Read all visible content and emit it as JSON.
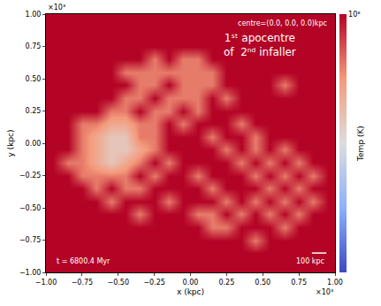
{
  "chart_data": {
    "type": "heatmap",
    "xlabel": "x (kpc)",
    "ylabel": "y (kpc)",
    "axis_multiplier": "×10³",
    "xlim": [
      -1000,
      1000
    ],
    "ylim": [
      -1000,
      1000
    ],
    "xticks": [
      {
        "value": -1000,
        "label": "−1.00"
      },
      {
        "value": -750,
        "label": "−0.75"
      },
      {
        "value": -500,
        "label": "−0.50"
      },
      {
        "value": -250,
        "label": "−0.25"
      },
      {
        "value": 0,
        "label": "0.00"
      },
      {
        "value": 250,
        "label": "0.25"
      },
      {
        "value": 500,
        "label": "0.50"
      },
      {
        "value": 750,
        "label": "0.75"
      },
      {
        "value": 1000,
        "label": "1.00"
      }
    ],
    "yticks": [
      {
        "value": -1000,
        "label": "−1.00"
      },
      {
        "value": -750,
        "label": "−0.75"
      },
      {
        "value": -500,
        "label": "−0.50"
      },
      {
        "value": -250,
        "label": "−0.25"
      },
      {
        "value": 0,
        "label": "0.00"
      },
      {
        "value": 250,
        "label": "0.25"
      },
      {
        "value": 500,
        "label": "0.50"
      },
      {
        "value": 750,
        "label": "0.75"
      },
      {
        "value": 1000,
        "label": "1.00"
      }
    ],
    "x": [
      -950,
      -850,
      -750,
      -650,
      -550,
      -450,
      -350,
      -250,
      -150,
      -50,
      50,
      150,
      250,
      350,
      450,
      550,
      650,
      750,
      850,
      950
    ],
    "y": [
      -950,
      -850,
      -750,
      -650,
      -550,
      -450,
      -350,
      -250,
      -150,
      -50,
      50,
      150,
      250,
      350,
      450,
      550,
      650,
      750,
      850,
      950
    ],
    "cells": [
      [
        100000000.0,
        100000000.0,
        100000000.0,
        100000000.0,
        100000000.0,
        100000000.0,
        100000000.0,
        100000000.0,
        100000000.0,
        100000000.0,
        100000000.0,
        100000000.0,
        100000000.0,
        100000000.0,
        100000000.0,
        100000000.0,
        100000000.0,
        100000000.0,
        100000000.0,
        100000000.0
      ],
      [
        100000000.0,
        100000000.0,
        100000000.0,
        100000000.0,
        100000000.0,
        100000000.0,
        100000000.0,
        100000000.0,
        100000000.0,
        100000000.0,
        100000000.0,
        100000000.0,
        100000000.0,
        100000000.0,
        100000000.0,
        100000000.0,
        100000000.0,
        100000000.0,
        100000000.0,
        100000000.0
      ],
      [
        100000000.0,
        100000000.0,
        100000000.0,
        100000000.0,
        100000000.0,
        100000000.0,
        100000000.0,
        100000000.0,
        100000000.0,
        100000000.0,
        100000000.0,
        100000000.0,
        100000000.0,
        100000000.0,
        40000000.0,
        100000000.0,
        100000000.0,
        100000000.0,
        100000000.0,
        100000000.0
      ],
      [
        100000000.0,
        100000000.0,
        100000000.0,
        100000000.0,
        100000000.0,
        100000000.0,
        100000000.0,
        100000000.0,
        100000000.0,
        100000000.0,
        100000000.0,
        40000000.0,
        40000000.0,
        100000000.0,
        100000000.0,
        100000000.0,
        40000000.0,
        100000000.0,
        100000000.0,
        100000000.0
      ],
      [
        100000000.0,
        100000000.0,
        100000000.0,
        100000000.0,
        100000000.0,
        100000000.0,
        40000000.0,
        100000000.0,
        100000000.0,
        100000000.0,
        40000000.0,
        40000000.0,
        100000000.0,
        40000000.0,
        100000000.0,
        40000000.0,
        100000000.0,
        40000000.0,
        100000000.0,
        100000000.0
      ],
      [
        100000000.0,
        100000000.0,
        100000000.0,
        100000000.0,
        40000000.0,
        100000000.0,
        100000000.0,
        100000000.0,
        40000000.0,
        100000000.0,
        100000000.0,
        100000000.0,
        40000000.0,
        100000000.0,
        40000000.0,
        100000000.0,
        40000000.0,
        100000000.0,
        40000000.0,
        100000000.0
      ],
      [
        100000000.0,
        100000000.0,
        100000000.0,
        40000000.0,
        100000000.0,
        40000000.0,
        40000000.0,
        100000000.0,
        100000000.0,
        100000000.0,
        100000000.0,
        40000000.0,
        100000000.0,
        100000000.0,
        100000000.0,
        40000000.0,
        100000000.0,
        40000000.0,
        100000000.0,
        100000000.0
      ],
      [
        100000000.0,
        100000000.0,
        40000000.0,
        40000000.0,
        40000000.0,
        40000000.0,
        100000000.0,
        40000000.0,
        100000000.0,
        100000000.0,
        40000000.0,
        100000000.0,
        100000000.0,
        100000000.0,
        40000000.0,
        100000000.0,
        40000000.0,
        100000000.0,
        40000000.0,
        100000000.0
      ],
      [
        100000000.0,
        40000000.0,
        40000000.0,
        25000000.0,
        15000000.0,
        25000000.0,
        40000000.0,
        100000000.0,
        40000000.0,
        100000000.0,
        100000000.0,
        100000000.0,
        100000000.0,
        40000000.0,
        100000000.0,
        40000000.0,
        100000000.0,
        40000000.0,
        100000000.0,
        100000000.0
      ],
      [
        100000000.0,
        100000000.0,
        40000000.0,
        25000000.0,
        15000000.0,
        15000000.0,
        25000000.0,
        40000000.0,
        100000000.0,
        100000000.0,
        100000000.0,
        100000000.0,
        40000000.0,
        100000000.0,
        40000000.0,
        100000000.0,
        40000000.0,
        100000000.0,
        100000000.0,
        100000000.0
      ],
      [
        100000000.0,
        100000000.0,
        40000000.0,
        25000000.0,
        15000000.0,
        15000000.0,
        40000000.0,
        40000000.0,
        100000000.0,
        100000000.0,
        100000000.0,
        40000000.0,
        100000000.0,
        100000000.0,
        40000000.0,
        100000000.0,
        100000000.0,
        100000000.0,
        100000000.0,
        100000000.0
      ],
      [
        100000000.0,
        100000000.0,
        40000000.0,
        40000000.0,
        25000000.0,
        25000000.0,
        40000000.0,
        40000000.0,
        100000000.0,
        40000000.0,
        100000000.0,
        100000000.0,
        100000000.0,
        40000000.0,
        100000000.0,
        100000000.0,
        100000000.0,
        100000000.0,
        100000000.0,
        100000000.0
      ],
      [
        100000000.0,
        100000000.0,
        100000000.0,
        100000000.0,
        40000000.0,
        40000000.0,
        100000000.0,
        40000000.0,
        40000000.0,
        100000000.0,
        40000000.0,
        100000000.0,
        100000000.0,
        100000000.0,
        100000000.0,
        100000000.0,
        100000000.0,
        100000000.0,
        100000000.0,
        100000000.0
      ],
      [
        100000000.0,
        100000000.0,
        100000000.0,
        100000000.0,
        100000000.0,
        40000000.0,
        40000000.0,
        100000000.0,
        40000000.0,
        40000000.0,
        40000000.0,
        100000000.0,
        40000000.0,
        100000000.0,
        100000000.0,
        100000000.0,
        100000000.0,
        100000000.0,
        100000000.0,
        100000000.0
      ],
      [
        100000000.0,
        100000000.0,
        100000000.0,
        100000000.0,
        100000000.0,
        100000000.0,
        40000000.0,
        40000000.0,
        100000000.0,
        40000000.0,
        40000000.0,
        40000000.0,
        100000000.0,
        100000000.0,
        100000000.0,
        100000000.0,
        40000000.0,
        100000000.0,
        100000000.0,
        100000000.0
      ],
      [
        100000000.0,
        100000000.0,
        100000000.0,
        100000000.0,
        100000000.0,
        40000000.0,
        40000000.0,
        40000000.0,
        40000000.0,
        40000000.0,
        40000000.0,
        40000000.0,
        100000000.0,
        100000000.0,
        100000000.0,
        100000000.0,
        100000000.0,
        100000000.0,
        100000000.0,
        100000000.0
      ],
      [
        100000000.0,
        100000000.0,
        100000000.0,
        100000000.0,
        100000000.0,
        100000000.0,
        100000000.0,
        40000000.0,
        100000000.0,
        40000000.0,
        40000000.0,
        100000000.0,
        100000000.0,
        100000000.0,
        100000000.0,
        100000000.0,
        100000000.0,
        100000000.0,
        100000000.0,
        100000000.0
      ],
      [
        100000000.0,
        100000000.0,
        100000000.0,
        100000000.0,
        100000000.0,
        100000000.0,
        100000000.0,
        100000000.0,
        100000000.0,
        100000000.0,
        100000000.0,
        100000000.0,
        100000000.0,
        100000000.0,
        100000000.0,
        100000000.0,
        100000000.0,
        100000000.0,
        100000000.0,
        100000000.0
      ],
      [
        100000000.0,
        100000000.0,
        100000000.0,
        100000000.0,
        100000000.0,
        100000000.0,
        100000000.0,
        100000000.0,
        100000000.0,
        100000000.0,
        100000000.0,
        100000000.0,
        100000000.0,
        100000000.0,
        100000000.0,
        100000000.0,
        100000000.0,
        100000000.0,
        100000000.0,
        100000000.0
      ],
      [
        100000000.0,
        100000000.0,
        100000000.0,
        100000000.0,
        100000000.0,
        100000000.0,
        100000000.0,
        100000000.0,
        100000000.0,
        100000000.0,
        100000000.0,
        100000000.0,
        100000000.0,
        100000000.0,
        100000000.0,
        100000000.0,
        100000000.0,
        100000000.0,
        100000000.0,
        100000000.0
      ]
    ],
    "colorbar": {
      "label": "Temp (K)",
      "log": true,
      "range": [
        1000000,
        100000000
      ],
      "ticks": [
        {
          "value": 100000000,
          "label": "10⁸"
        }
      ]
    },
    "annotations": [
      "centre=(0.0, 0.0, 0.0)kpc",
      [
        "1ˢᵗ apocentre",
        "of  2ⁿᵈ infaller"
      ],
      "t = 6800.4 Myr"
    ],
    "scale_bar": {
      "value": 100,
      "label": "100 kpc"
    }
  }
}
